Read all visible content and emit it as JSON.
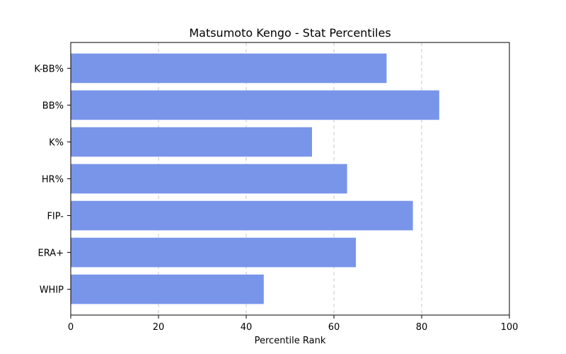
{
  "chart_data": {
    "type": "bar",
    "orientation": "horizontal",
    "title": "Matsumoto Kengo - Stat Percentiles",
    "xlabel": "Percentile Rank",
    "ylabel": "",
    "categories": [
      "K-BB%",
      "BB%",
      "K%",
      "HR%",
      "FIP-",
      "ERA+",
      "WHIP"
    ],
    "values": [
      72,
      84,
      55,
      63,
      78,
      65,
      44
    ],
    "xlim": [
      0,
      100
    ],
    "xticks": [
      0,
      20,
      40,
      60,
      80,
      100
    ],
    "grid": "x-dashed",
    "bar_color": "#7895ea"
  }
}
